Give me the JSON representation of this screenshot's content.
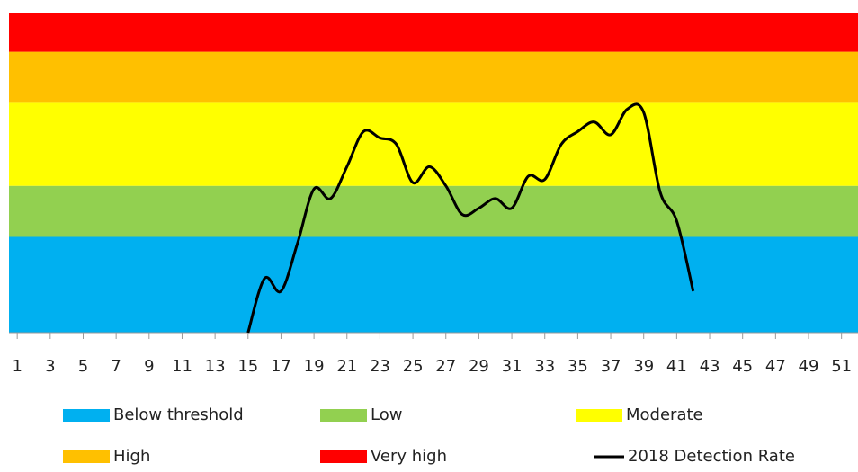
{
  "chart_data": {
    "type": "line",
    "bands": [
      {
        "name": "Below threshold",
        "color": "#00b0f0",
        "value": 30
      },
      {
        "name": "Low",
        "color": "#92d050",
        "value": 16
      },
      {
        "name": "Moderate",
        "color": "#ffff00",
        "value": 26
      },
      {
        "name": "High",
        "color": "#ffc000",
        "value": 16
      },
      {
        "name": "Very high",
        "color": "#ff0000",
        "value": 12
      }
    ],
    "x": [
      15,
      16,
      17,
      18,
      19,
      20,
      21,
      22,
      23,
      24,
      25,
      26,
      27,
      28,
      29,
      30,
      31,
      32,
      33,
      34,
      35,
      36,
      37,
      38,
      39,
      40,
      41,
      42
    ],
    "series": [
      {
        "name": "2018 Detection Rate",
        "color": "#000000",
        "values": [
          0,
          17,
          13,
          28,
          45,
          42,
          52,
          63,
          61,
          59,
          47,
          52,
          46,
          37,
          39,
          42,
          39,
          49,
          48,
          59,
          63,
          66,
          62,
          70,
          69,
          44,
          35,
          13
        ]
      }
    ],
    "xlim": [
      0.5,
      52
    ],
    "ylim": [
      0,
      100
    ],
    "xticks": [
      1,
      3,
      5,
      7,
      9,
      11,
      13,
      15,
      17,
      19,
      21,
      23,
      25,
      27,
      29,
      31,
      33,
      35,
      37,
      39,
      41,
      43,
      45,
      47,
      49,
      51
    ]
  }
}
